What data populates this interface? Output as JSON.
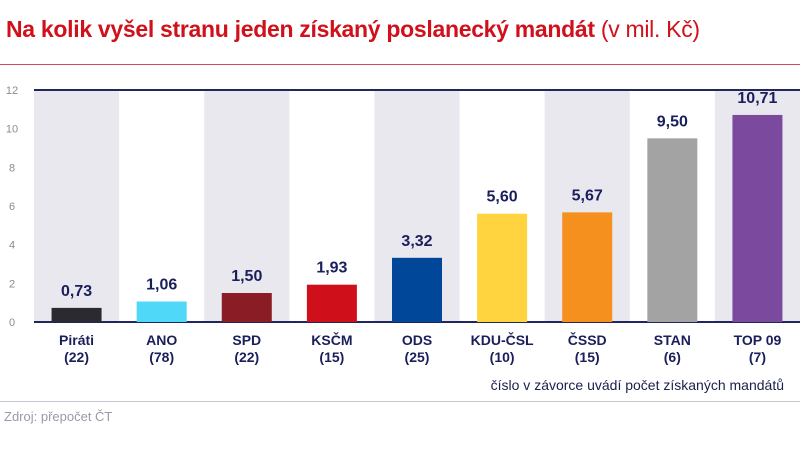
{
  "title": {
    "main": "Na kolik vyšel stranu jeden získaný poslanecký mandát",
    "unit": "(v mil. Kč)"
  },
  "note": "číslo v závorce uvádí počet získaných mandátů",
  "source": "Zdroj: přepočet ČT",
  "chart_data": {
    "type": "bar",
    "title": "Na kolik vyšel stranu jeden získaný poslanecký mandát (v mil. Kč)",
    "categories": [
      "Piráti",
      "ANO",
      "SPD",
      "KSČM",
      "ODS",
      "KDU-ČSL",
      "ČSSD",
      "STAN",
      "TOP 09"
    ],
    "mandates": [
      "(22)",
      "(78)",
      "(22)",
      "(15)",
      "(25)",
      "(10)",
      "(15)",
      "(6)",
      "(7)"
    ],
    "values": [
      0.73,
      1.06,
      1.5,
      1.93,
      3.32,
      5.6,
      5.67,
      9.5,
      10.71
    ],
    "value_labels": [
      "0,73",
      "1,06",
      "1,50",
      "1,93",
      "3,32",
      "5,60",
      "5,67",
      "9,50",
      "10,71"
    ],
    "colors": [
      "#2a2a30",
      "#4fd8f7",
      "#8a1c26",
      "#cf0f1a",
      "#00479a",
      "#ffd43f",
      "#f5901e",
      "#a3a3a3",
      "#7b4a9f"
    ],
    "ylim": [
      0,
      12
    ],
    "yticks": [
      "0",
      "2",
      "4",
      "6",
      "8",
      "10",
      "12"
    ],
    "grid": false,
    "xlabel": "",
    "ylabel": ""
  }
}
